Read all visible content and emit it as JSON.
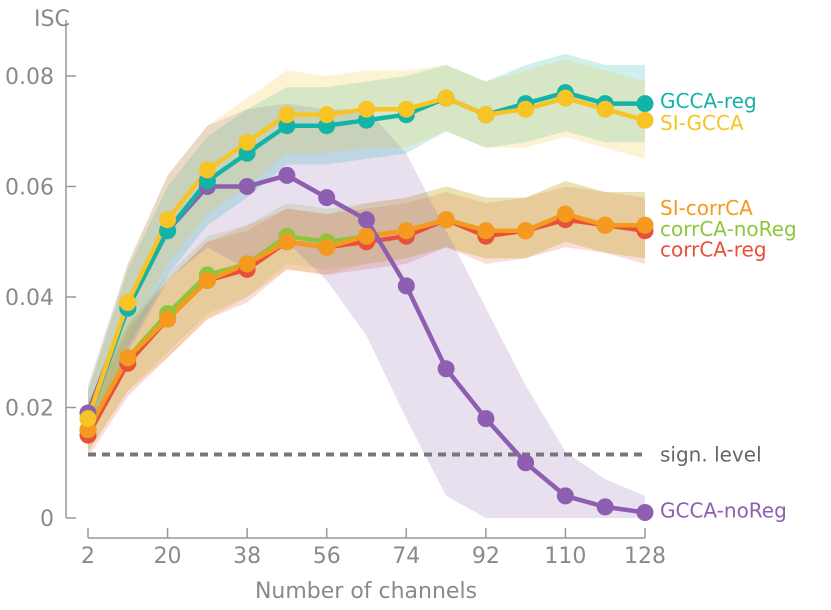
{
  "chart_data": {
    "type": "line",
    "title": "",
    "ylabel": "ISC",
    "xlabel": "Number of channels",
    "x": [
      2,
      11,
      20,
      29,
      38,
      47,
      56,
      65,
      74,
      83,
      92,
      101,
      110,
      119,
      128
    ],
    "xticks": [
      2,
      20,
      38,
      56,
      74,
      92,
      110,
      128
    ],
    "xlim": [
      2,
      128
    ],
    "ylim": [
      0,
      0.085
    ],
    "yticks": [
      0,
      0.02,
      0.04,
      0.06,
      0.08
    ],
    "ytick_labels": [
      "0",
      "0.02",
      "0.04",
      "0.06",
      "0.08"
    ],
    "grid": false,
    "series": [
      {
        "name": "corrCA-reg",
        "color": "#e8503a",
        "values": [
          0.015,
          0.028,
          0.036,
          0.043,
          0.045,
          0.05,
          0.049,
          0.05,
          0.051,
          0.054,
          0.051,
          0.052,
          0.054,
          0.053,
          0.052
        ],
        "lower": [
          0.011,
          0.022,
          0.029,
          0.036,
          0.039,
          0.045,
          0.044,
          0.045,
          0.046,
          0.049,
          0.046,
          0.047,
          0.049,
          0.048,
          0.046
        ],
        "upper": [
          0.02,
          0.034,
          0.043,
          0.05,
          0.052,
          0.056,
          0.055,
          0.056,
          0.057,
          0.059,
          0.057,
          0.058,
          0.06,
          0.059,
          0.058
        ]
      },
      {
        "name": "corrCA-noReg",
        "color": "#8cc63f",
        "values": [
          0.016,
          0.029,
          0.037,
          0.044,
          0.046,
          0.051,
          0.05,
          0.051,
          0.052,
          0.054,
          0.052,
          0.052,
          0.055,
          0.053,
          0.053
        ],
        "lower": [
          0.012,
          0.023,
          0.03,
          0.037,
          0.04,
          0.046,
          0.045,
          0.046,
          0.047,
          0.049,
          0.047,
          0.047,
          0.05,
          0.048,
          0.047
        ],
        "upper": [
          0.021,
          0.035,
          0.044,
          0.051,
          0.053,
          0.057,
          0.056,
          0.057,
          0.058,
          0.06,
          0.058,
          0.058,
          0.061,
          0.059,
          0.059
        ]
      },
      {
        "name": "SI-corrCA",
        "color": "#f59a1e",
        "values": [
          0.016,
          0.029,
          0.036,
          0.043,
          0.046,
          0.05,
          0.049,
          0.051,
          0.052,
          0.054,
          0.052,
          0.052,
          0.055,
          0.053,
          0.053
        ],
        "lower": [
          0.012,
          0.023,
          0.029,
          0.036,
          0.04,
          0.045,
          0.044,
          0.046,
          0.047,
          0.049,
          0.047,
          0.047,
          0.05,
          0.048,
          0.047
        ],
        "upper": [
          0.021,
          0.035,
          0.043,
          0.05,
          0.053,
          0.056,
          0.055,
          0.057,
          0.058,
          0.06,
          0.058,
          0.058,
          0.061,
          0.059,
          0.059
        ]
      },
      {
        "name": "GCCA-noReg",
        "color": "#8e5fb0",
        "values": [
          0.019,
          0.038,
          0.052,
          0.06,
          0.06,
          0.062,
          0.058,
          0.054,
          0.042,
          0.027,
          0.018,
          0.01,
          0.004,
          0.002,
          0.001
        ],
        "lower": [
          0.014,
          0.03,
          0.043,
          0.049,
          0.045,
          0.05,
          0.043,
          0.033,
          0.018,
          0.004,
          0.0,
          0.0,
          0.0,
          0.0,
          0.0
        ],
        "upper": [
          0.024,
          0.046,
          0.062,
          0.071,
          0.074,
          0.075,
          0.074,
          0.074,
          0.066,
          0.052,
          0.038,
          0.024,
          0.012,
          0.007,
          0.004
        ]
      },
      {
        "name": "GCCA-reg",
        "color": "#14b3a8",
        "values": [
          0.018,
          0.038,
          0.052,
          0.061,
          0.066,
          0.071,
          0.071,
          0.072,
          0.073,
          0.076,
          0.073,
          0.075,
          0.077,
          0.075,
          0.075
        ],
        "lower": [
          0.013,
          0.031,
          0.044,
          0.053,
          0.058,
          0.064,
          0.064,
          0.065,
          0.066,
          0.07,
          0.067,
          0.068,
          0.07,
          0.068,
          0.068
        ],
        "upper": [
          0.023,
          0.045,
          0.06,
          0.069,
          0.074,
          0.078,
          0.078,
          0.079,
          0.08,
          0.082,
          0.079,
          0.082,
          0.084,
          0.082,
          0.082
        ]
      },
      {
        "name": "SI-GCCA",
        "color": "#f7c325",
        "values": [
          0.018,
          0.039,
          0.054,
          0.063,
          0.068,
          0.073,
          0.073,
          0.074,
          0.074,
          0.076,
          0.073,
          0.074,
          0.076,
          0.074,
          0.072
        ],
        "lower": [
          0.013,
          0.032,
          0.046,
          0.055,
          0.06,
          0.066,
          0.066,
          0.067,
          0.067,
          0.07,
          0.067,
          0.067,
          0.069,
          0.067,
          0.065
        ],
        "upper": [
          0.023,
          0.046,
          0.062,
          0.071,
          0.076,
          0.081,
          0.08,
          0.081,
          0.081,
          0.082,
          0.079,
          0.081,
          0.083,
          0.081,
          0.079
        ]
      }
    ],
    "significance": {
      "label": "sign. level",
      "value": 0.0115,
      "color": "#777777"
    },
    "legend": [
      {
        "name": "GCCA-reg",
        "color": "#14b3a8",
        "at_value": 0.0755
      },
      {
        "name": "SI-GCCA",
        "color": "#f7c325",
        "at_value": 0.0715
      },
      {
        "name": "SI-corrCA",
        "color": "#f59a1e",
        "at_value": 0.0561
      },
      {
        "name": "corrCA-noReg",
        "color": "#8cc63f",
        "at_value": 0.0523
      },
      {
        "name": "corrCA-reg",
        "color": "#e8503a",
        "at_value": 0.0486
      },
      {
        "name": "GCCA-noReg",
        "color": "#8e5fb0",
        "at_value": 0.0014
      }
    ]
  }
}
